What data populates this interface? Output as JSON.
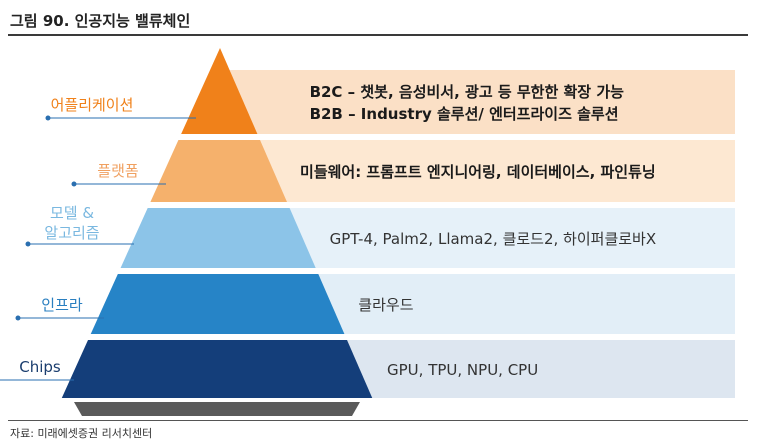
{
  "title": "그림 90. 인공지능 밸류체인",
  "source": "자료: 미래에셋증권 리서치센터",
  "layers": [
    {
      "name": "어플리케이션",
      "lines": [
        "B2C – 챗봇, 음성비서, 광고 등 무한한 확장 가능",
        "B2B – Industry 솔루션/ 엔터프라이즈 솔루션"
      ],
      "color": "#f0811a",
      "band": "#fbe0c6",
      "label_color": "#f0811a",
      "text_bold": true
    },
    {
      "name": "플랫폼",
      "lines": [
        "미들웨어: 프롬프트 엔지니어링, 데이터베이스, 파인튜닝"
      ],
      "color": "#f5b16c",
      "band": "#fde8d2",
      "label_color": "#f0a060",
      "text_bold": true
    },
    {
      "name": "모델 &\n알고리즘",
      "lines": [
        "GPT-4, Palm2, Llama2, 클로드2, 하이퍼클로바X"
      ],
      "color": "#8cc4e8",
      "band": "#e6f1f9",
      "label_color": "#7ab8e0",
      "text_bold": false
    },
    {
      "name": "인프라",
      "lines": [
        "클라우드"
      ],
      "color": "#2684c7",
      "band": "#e2eef7",
      "label_color": "#2a7fc0",
      "text_bold": false
    },
    {
      "name": "Chips",
      "lines": [
        "GPU, TPU, NPU, CPU"
      ],
      "color": "#143e7a",
      "band": "#dde6f0",
      "label_color": "#1a3d6e",
      "text_bold": false
    }
  ],
  "colors": {
    "base": "#5a5a5a",
    "connector": "#2a6fb0"
  }
}
